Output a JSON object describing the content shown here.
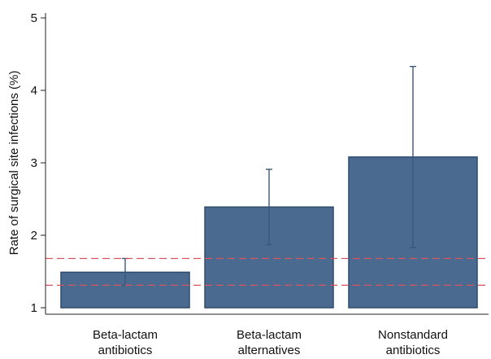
{
  "chart_data": {
    "type": "bar",
    "title": "",
    "xlabel": "",
    "ylabel": "Rate of surgical site infections (%)",
    "ylim": [
      1,
      5
    ],
    "yticks": [
      1,
      2,
      3,
      4,
      5
    ],
    "grid": false,
    "categories": [
      [
        "Beta-lactam",
        "antibiotics"
      ],
      [
        "Beta-lactam",
        "alternatives"
      ],
      [
        "Nonstandard",
        "antibiotics"
      ]
    ],
    "values": [
      1.49,
      2.39,
      3.08
    ],
    "error_low": [
      1.31,
      1.87,
      1.83
    ],
    "error_high": [
      1.68,
      2.91,
      4.33
    ],
    "reference_lines": [
      1.68,
      1.31
    ],
    "bar_color": "#4a6a90",
    "bar_edge_color": "#2f4a6b",
    "error_color": "#3b5878",
    "reference_line_color": "#d9545f"
  }
}
